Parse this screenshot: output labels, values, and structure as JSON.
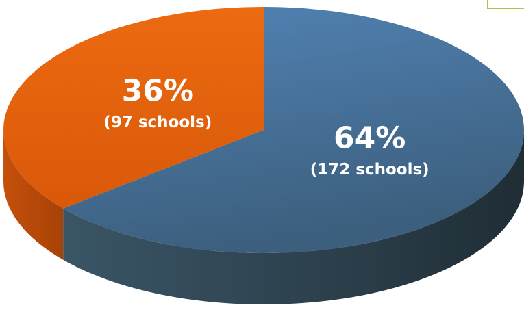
{
  "chart_data": {
    "type": "pie3d",
    "values": [
      36,
      64
    ],
    "value_labels": [
      "36%",
      "64%"
    ],
    "sub_labels": [
      "(97 schools)",
      "(172 schools)"
    ],
    "colors": [
      "#e2620c",
      "#4a78a6"
    ],
    "side_colors": [
      "#b9490a",
      "#2f4554"
    ]
  }
}
